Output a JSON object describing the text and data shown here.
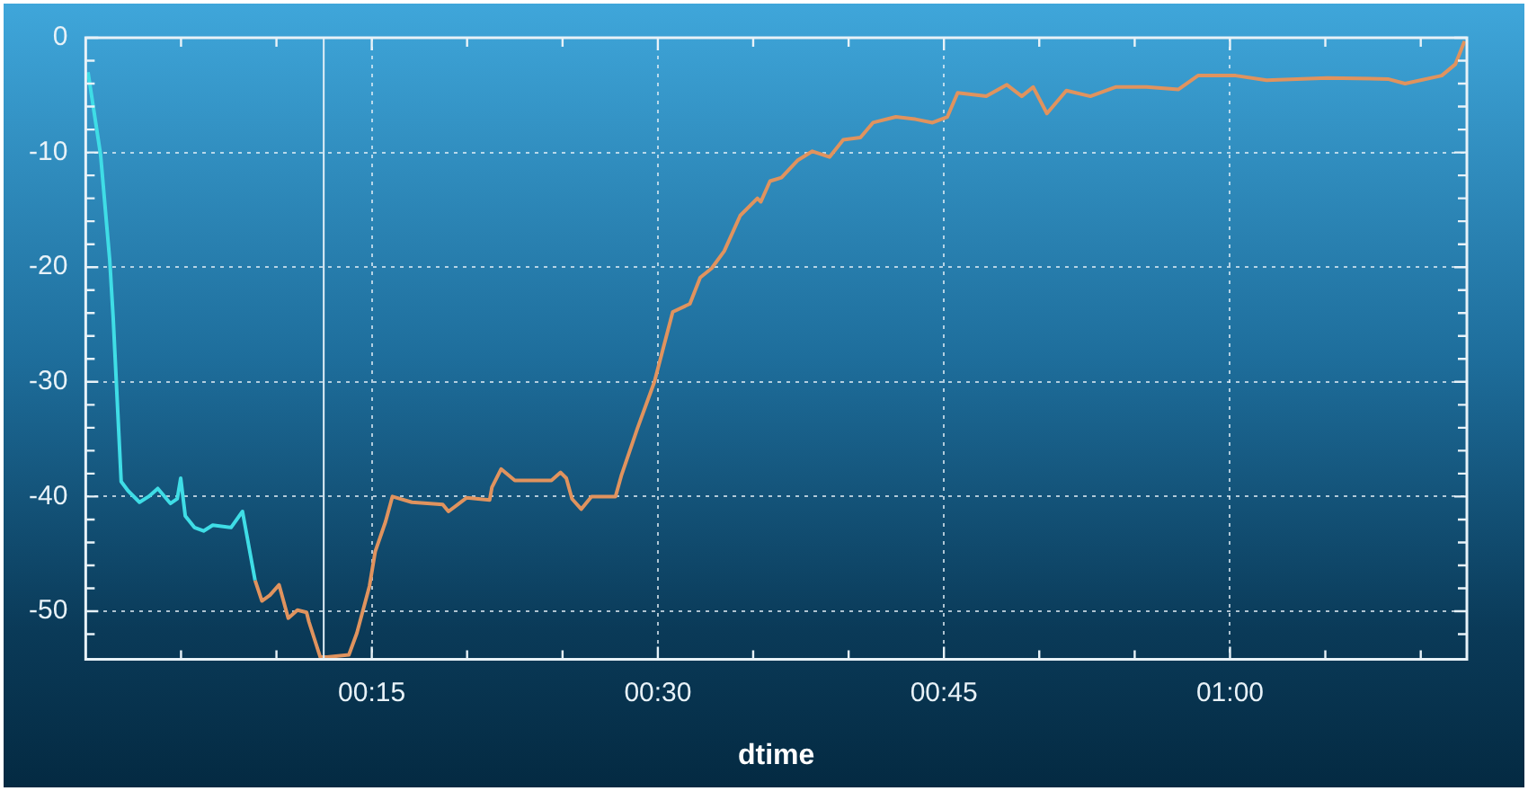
{
  "chart_data": {
    "type": "line",
    "xlabel": "dtime",
    "grid": true,
    "line_style": "solid",
    "xlim": [
      0,
      1.207
    ],
    "ylim": [
      -54.2,
      0
    ],
    "xticks": [
      {
        "value": 0.0833,
        "label": null
      },
      {
        "value": 0.1667,
        "label": null
      },
      {
        "value": 0.25,
        "label": "00:15"
      },
      {
        "value": 0.3333,
        "label": null
      },
      {
        "value": 0.4167,
        "label": null
      },
      {
        "value": 0.5,
        "label": "00:30"
      },
      {
        "value": 0.5833,
        "label": null
      },
      {
        "value": 0.6667,
        "label": null
      },
      {
        "value": 0.75,
        "label": "00:45"
      },
      {
        "value": 0.8333,
        "label": null
      },
      {
        "value": 0.9167,
        "label": null
      },
      {
        "value": 1.0,
        "label": "01:00"
      },
      {
        "value": 1.0833,
        "label": null
      },
      {
        "value": 1.1667,
        "label": null
      }
    ],
    "yticks": [
      0,
      {
        "value": -2,
        "label": null
      },
      {
        "value": -4,
        "label": null
      },
      {
        "value": -6,
        "label": null
      },
      {
        "value": -8,
        "label": null
      },
      -10,
      {
        "value": -12,
        "label": null
      },
      {
        "value": -14,
        "label": null
      },
      {
        "value": -16,
        "label": null
      },
      {
        "value": -18,
        "label": null
      },
      -20,
      {
        "value": -22,
        "label": null
      },
      {
        "value": -24,
        "label": null
      },
      {
        "value": -26,
        "label": null
      },
      {
        "value": -28,
        "label": null
      },
      -30,
      {
        "value": -32,
        "label": null
      },
      {
        "value": -34,
        "label": null
      },
      {
        "value": -36,
        "label": null
      },
      {
        "value": -38,
        "label": null
      },
      -40,
      {
        "value": -42,
        "label": null
      },
      {
        "value": -44,
        "label": null
      },
      {
        "value": -46,
        "label": null
      },
      {
        "value": -48,
        "label": null
      },
      -50,
      {
        "value": -52,
        "label": null
      }
    ],
    "ref_lines": [
      {
        "axis": "x",
        "value": 0.208,
        "color": "#dfeef6"
      }
    ],
    "series": [
      {
        "color": "#3fdde6",
        "x": [
          0.002,
          0.013,
          0.021,
          0.024,
          0.031,
          0.037,
          0.047,
          0.055,
          0.063,
          0.074,
          0.08,
          0.083,
          0.087,
          0.095,
          0.103,
          0.111,
          0.127,
          0.137,
          0.148
        ],
        "values": [
          -3.0,
          -10.2,
          -19.4,
          -24.4,
          -38.7,
          -39.5,
          -40.5,
          -40,
          -39.3,
          -40.6,
          -40.2,
          -38.4,
          -41.7,
          -42.7,
          -43.0,
          -42.5,
          -42.7,
          -41.3,
          -47.3
        ]
      },
      {
        "color": "#e0935e",
        "x": [
          0.148,
          0.154,
          0.161,
          0.169,
          0.177,
          0.185,
          0.193,
          0.195,
          0.205,
          0.211,
          0.23,
          0.237,
          0.248,
          0.253,
          0.262,
          0.268,
          0.285,
          0.312,
          0.317,
          0.333,
          0.353,
          0.355,
          0.363,
          0.375,
          0.392,
          0.407,
          0.415,
          0.42,
          0.425,
          0.433,
          0.442,
          0.463,
          0.468,
          0.482,
          0.497,
          0.513,
          0.528,
          0.537,
          0.547,
          0.558,
          0.572,
          0.587,
          0.59,
          0.598,
          0.608,
          0.622,
          0.635,
          0.65,
          0.662,
          0.677,
          0.688,
          0.708,
          0.725,
          0.74,
          0.753,
          0.762,
          0.787,
          0.805,
          0.818,
          0.828,
          0.84,
          0.857,
          0.878,
          0.9,
          0.927,
          0.955,
          0.972,
          1.005,
          1.032,
          1.085,
          1.138,
          1.153,
          1.185,
          1.197,
          1.205
        ],
        "values": [
          -47.3,
          -49.1,
          -48.6,
          -47.7,
          -50.6,
          -49.9,
          -50.1,
          -50.9,
          -54.0,
          -54.0,
          -53.8,
          -51.9,
          -47.8,
          -44.8,
          -42.2,
          -40.0,
          -40.5,
          -40.7,
          -41.3,
          -40.1,
          -40.3,
          -39.2,
          -37.6,
          -38.6,
          -38.6,
          -38.6,
          -37.9,
          -38.4,
          -40.2,
          -41.1,
          -40.0,
          -40.0,
          -38.2,
          -34.1,
          -30.0,
          -23.9,
          -23.2,
          -20.9,
          -20.1,
          -18.6,
          -15.5,
          -14.0,
          -14.3,
          -12.5,
          -12.2,
          -10.7,
          -9.9,
          -10.4,
          -8.9,
          -8.7,
          -7.4,
          -6.9,
          -7.1,
          -7.4,
          -6.9,
          -4.8,
          -5.1,
          -4.1,
          -5.1,
          -4.3,
          -6.6,
          -4.6,
          -5.1,
          -4.3,
          -4.3,
          -4.5,
          -3.3,
          -3.3,
          -3.7,
          -3.5,
          -3.6,
          -4.0,
          -3.3,
          -2.3,
          -0.3
        ]
      }
    ]
  }
}
